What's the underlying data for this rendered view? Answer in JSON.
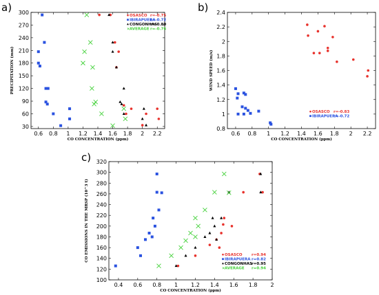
{
  "chart_data": [
    {
      "panel": "a)",
      "type": "scatter",
      "xlabel": "CO CONCENTRATION (ppm)",
      "ylabel": "PRECIPITATION (mm)",
      "xlim": [
        0.5,
        2.3
      ],
      "ylim": [
        25,
        300
      ],
      "xticks": [
        "0.6",
        "0.8",
        "1",
        "1.2",
        "1.4",
        "1.6",
        "1.8",
        "2",
        "2.2"
      ],
      "yticks": [
        "30",
        "60",
        "90",
        "120",
        "150",
        "180",
        "210",
        "240",
        "270",
        "300"
      ],
      "legend_position": "top-right",
      "grid": false,
      "series": [
        {
          "name": "OSASCO",
          "r_label": "r=-0.75",
          "marker": "dot",
          "color": "#e8322c",
          "x": [
            1.42,
            1.57,
            1.63,
            1.68,
            1.65,
            1.75,
            1.85,
            2.05,
            2.2,
            2.22,
            1.78,
            2.0
          ],
          "y": [
            294,
            294,
            229,
            207,
            170,
            80,
            72,
            60,
            72,
            48,
            60,
            33
          ]
        },
        {
          "name": "IBIRAPUERA",
          "r_label": "r=-0.72",
          "marker": "square",
          "color": "#2a52e0",
          "x": [
            0.65,
            0.6,
            0.6,
            0.68,
            0.62,
            0.7,
            0.7,
            0.72,
            0.73,
            0.8,
            0.9,
            1.02,
            1.02
          ],
          "y": [
            294,
            207,
            180,
            229,
            173,
            120,
            88,
            83,
            120,
            60,
            32,
            72,
            48
          ]
        },
        {
          "name": "CONGONHAS",
          "r_label": "r=-0.80",
          "marker": "triangle",
          "color": "#000000",
          "x": [
            1.55,
            1.6,
            1.6,
            1.65,
            1.7,
            1.72,
            1.75,
            1.75,
            2.02,
            2.0,
            2.05
          ],
          "y": [
            294,
            207,
            229,
            170,
            88,
            83,
            120,
            60,
            72,
            48,
            33
          ]
        },
        {
          "name": "AVERAGE",
          "r_label": "r=-0.76",
          "marker": "cross",
          "color": "#44d13a",
          "x": [
            1.25,
            1.22,
            1.2,
            1.3,
            1.33,
            1.32,
            1.37,
            1.35,
            1.45,
            1.6,
            1.75,
            1.77
          ],
          "y": [
            294,
            207,
            180,
            229,
            170,
            120,
            88,
            83,
            60,
            32,
            72,
            48
          ]
        }
      ]
    },
    {
      "panel": "b)",
      "type": "scatter",
      "xlabel": "CO CONCENTRATION (ppm)",
      "ylabel": "WIND SPEED (m/s)",
      "xlim": [
        0.5,
        2.3
      ],
      "ylim": [
        0.8,
        2.4
      ],
      "xticks": [
        "0.6",
        "0.8",
        "1",
        "1.2",
        "1.4",
        "1.6",
        "1.8",
        "2",
        "2.2"
      ],
      "yticks": [
        "0.8",
        "1",
        "1.2",
        "1.4",
        "1.6",
        "1.8",
        "2",
        "2.2",
        "2.4"
      ],
      "legend_position": "bottom-right",
      "grid": false,
      "series": [
        {
          "name": "OSASCO",
          "r_label": "r=-0.83",
          "marker": "dot",
          "color": "#e8322c",
          "x": [
            1.47,
            1.48,
            1.55,
            1.6,
            1.62,
            1.68,
            1.72,
            1.72,
            1.78,
            1.83,
            2.03,
            2.2,
            2.21
          ],
          "y": [
            2.23,
            2.08,
            1.84,
            2.14,
            1.84,
            2.21,
            1.91,
            1.87,
            2.06,
            1.72,
            1.75,
            1.52,
            1.6
          ]
        },
        {
          "name": "IBIRAPUERA",
          "r_label": "r=-0.72",
          "marker": "square",
          "color": "#2a52e0",
          "x": [
            0.6,
            0.62,
            0.63,
            0.68,
            0.7,
            0.7,
            0.72,
            0.72,
            0.75,
            0.78,
            0.88,
            1.02,
            1.03,
            0.63
          ],
          "y": [
            1.35,
            1.22,
            1.0,
            1.1,
            1.29,
            1.0,
            1.27,
            1.08,
            1.05,
            1.01,
            1.04,
            0.88,
            0.86,
            1.28
          ]
        }
      ]
    },
    {
      "panel": "c)",
      "type": "scatter",
      "xlabel": "CO CONCENTRATION (ppm)",
      "ylabel": "CO EMISSIONS IN THE MRSP (10^3 t)",
      "xlim": [
        0.3,
        2.0
      ],
      "ylim": [
        100,
        320
      ],
      "xticks": [
        "0.4",
        "0.6",
        "0.8",
        "1",
        "1.2",
        "1.4",
        "1.6",
        "1.8",
        "2"
      ],
      "yticks": [
        "100",
        "120",
        "140",
        "160",
        "180",
        "200",
        "220",
        "240",
        "260",
        "280",
        "300",
        "320"
      ],
      "legend_position": "bottom-right",
      "grid": false,
      "series": [
        {
          "name": "OSASCO",
          "r_label": "r=0.94",
          "marker": "dot",
          "color": "#e8322c",
          "x": [
            1.02,
            1.2,
            1.35,
            1.42,
            1.47,
            1.5,
            1.58,
            1.7,
            1.87,
            1.9,
            1.49,
            1.45
          ],
          "y": [
            126,
            145,
            165,
            175,
            187,
            215,
            200,
            263,
            297,
            263,
            203,
            160
          ]
        },
        {
          "name": "IBIRAPUERA",
          "r_label": "r=0.82",
          "marker": "square",
          "color": "#2a52e0",
          "x": [
            0.37,
            0.6,
            0.63,
            0.68,
            0.72,
            0.76,
            0.78,
            0.8,
            0.8,
            0.85,
            0.82,
            0.75
          ],
          "y": [
            126,
            160,
            145,
            175,
            187,
            215,
            200,
            263,
            297,
            262,
            230,
            180
          ]
        },
        {
          "name": "CONGONHAS",
          "r_label": "r=0.95",
          "marker": "triangle",
          "color": "#000000",
          "x": [
            1.0,
            1.1,
            1.2,
            1.3,
            1.35,
            1.38,
            1.4,
            1.42,
            1.47,
            1.55,
            1.88,
            1.88
          ],
          "y": [
            126,
            145,
            160,
            180,
            187,
            215,
            200,
            175,
            215,
            263,
            297,
            263
          ]
        },
        {
          "name": "AVERAGE",
          "r_label": "r=0.94",
          "marker": "cross",
          "color": "#44d13a",
          "x": [
            0.82,
            0.95,
            1.05,
            1.1,
            1.15,
            1.2,
            1.23,
            1.3,
            1.4,
            1.5,
            1.55,
            1.2
          ],
          "y": [
            126,
            145,
            160,
            173,
            187,
            215,
            200,
            230,
            263,
            297,
            262,
            180
          ]
        }
      ]
    }
  ]
}
